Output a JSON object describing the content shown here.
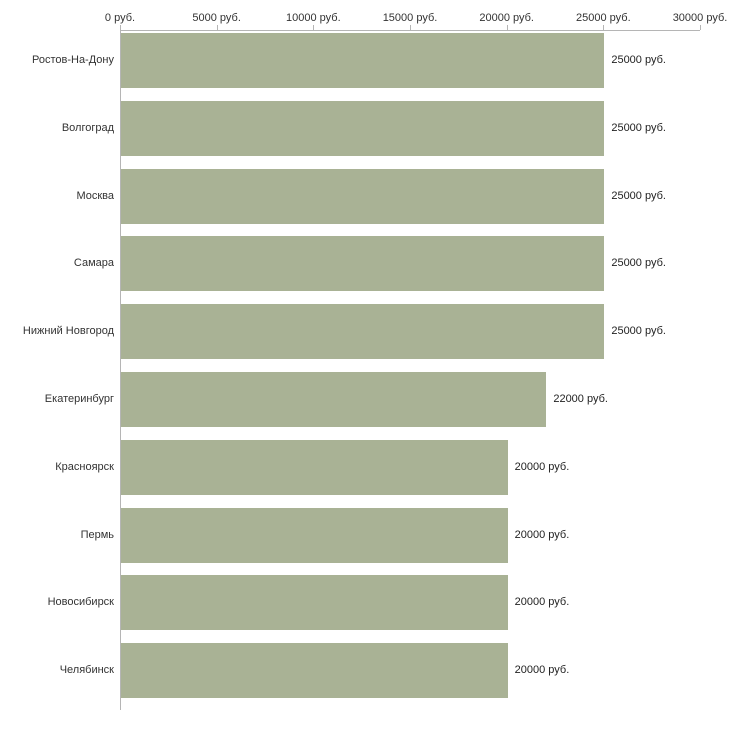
{
  "chart_data": {
    "type": "bar",
    "orientation": "horizontal",
    "title": "",
    "xlabel": "",
    "ylabel": "",
    "xlim": [
      0,
      30000
    ],
    "grid": false,
    "legend": "none",
    "bar_color": "#a9b295",
    "axis_color": "#b5b5b5",
    "text_color": "#333333",
    "categories": [
      "Ростов-На-Дону",
      "Волгоград",
      "Москва",
      "Самара",
      "Нижний Новгород",
      "Екатеринбург",
      "Красноярск",
      "Пермь",
      "Новосибирск",
      "Челябинск"
    ],
    "values": [
      25000,
      25000,
      25000,
      25000,
      25000,
      22000,
      20000,
      20000,
      20000,
      20000
    ],
    "value_labels": [
      "25000 руб.",
      "25000 руб.",
      "25000 руб.",
      "25000 руб.",
      "25000 руб.",
      "22000 руб.",
      "20000 руб.",
      "20000 руб.",
      "20000 руб.",
      "20000 руб."
    ],
    "x_ticks": [
      0,
      5000,
      10000,
      15000,
      20000,
      25000,
      30000
    ],
    "x_tick_labels": [
      "0 руб.",
      "5000 руб.",
      "10000 руб.",
      "15000 руб.",
      "20000 руб.",
      "25000 руб.",
      "30000 руб."
    ]
  }
}
